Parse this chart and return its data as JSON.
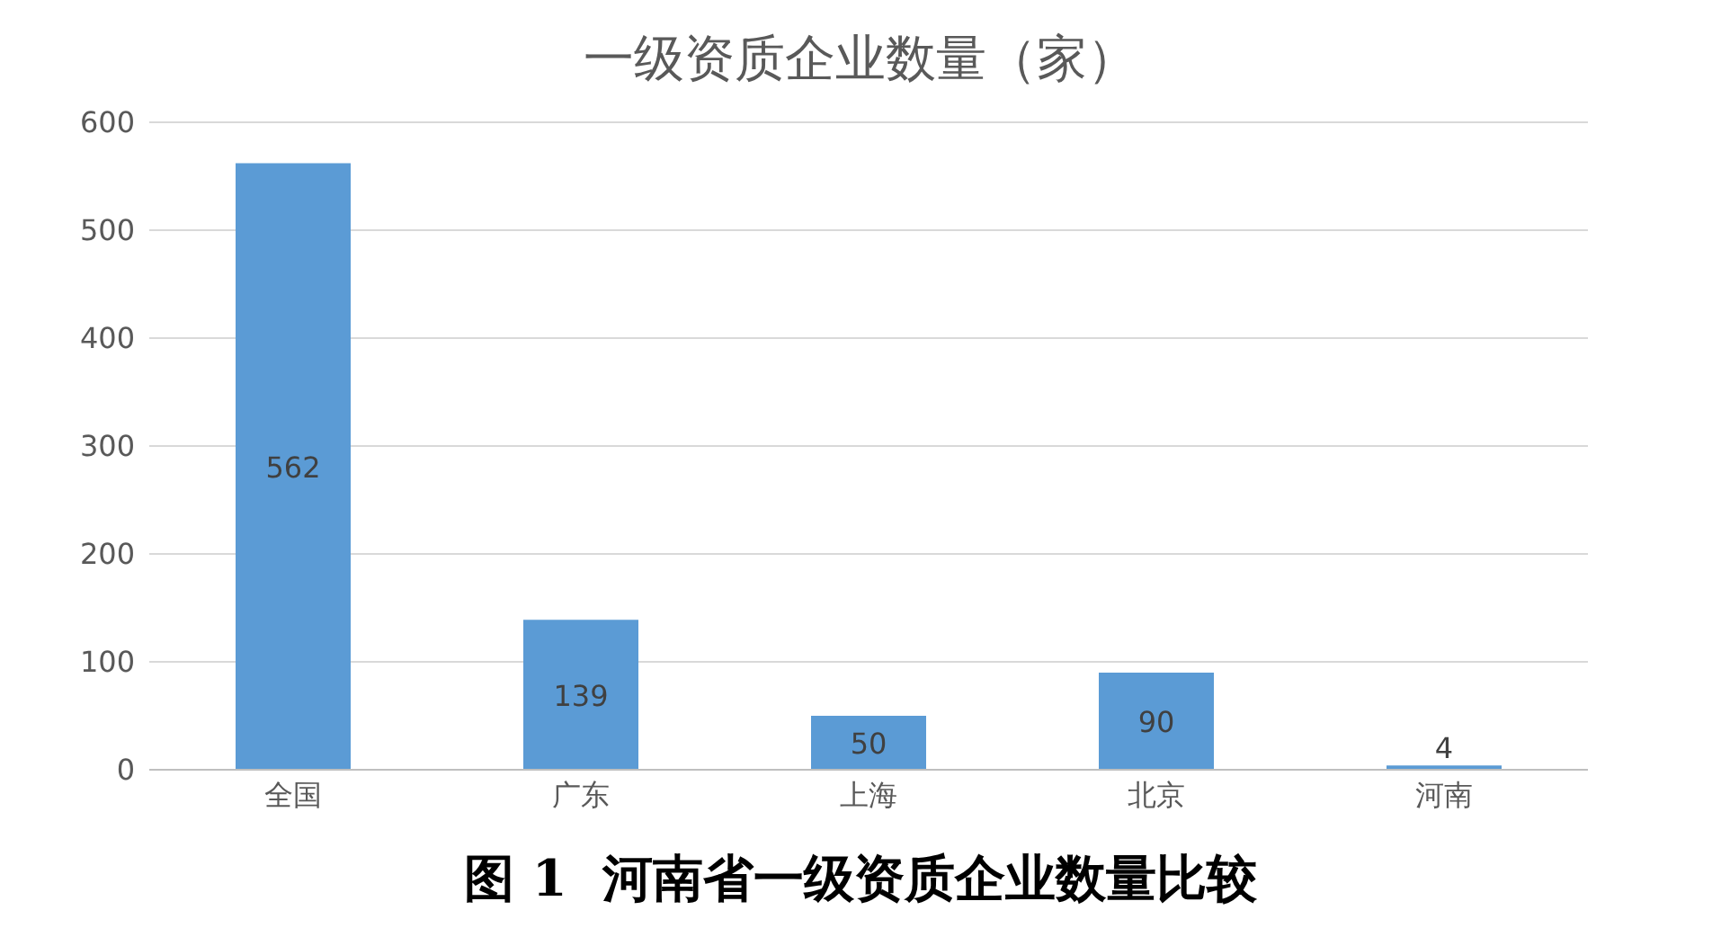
{
  "chart_data": {
    "type": "bar",
    "title": "一级资质企业数量（家）",
    "categories": [
      "全国",
      "广东",
      "上海",
      "北京",
      "河南"
    ],
    "values": [
      562,
      139,
      50,
      90,
      4
    ],
    "color": "#5b9bd5",
    "ylim": [
      0,
      600
    ],
    "yticks": [
      0,
      100,
      200,
      300,
      400,
      500,
      600
    ],
    "grid": "y",
    "legend": false,
    "data_labels": true,
    "annotations": [
      "图 1  河南省一级资质企业数量比较"
    ]
  }
}
